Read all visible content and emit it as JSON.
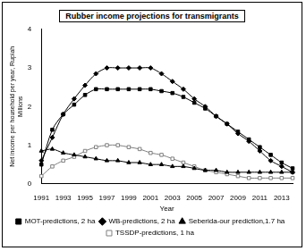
{
  "chart_data": {
    "type": "line",
    "title": "Rubber income projections for transmigrants",
    "x_label": "Year",
    "y_label": [
      "Net income per household per year, Rupiah",
      "Millions"
    ],
    "categories": [
      "1991",
      null,
      "1993",
      null,
      "1995",
      null,
      "1997",
      null,
      "1999",
      null,
      "2001",
      null,
      "2003",
      null,
      "2005",
      null,
      "2007",
      null,
      "2009",
      null,
      "2011",
      null,
      "2013",
      null
    ],
    "ylim": [
      0,
      4
    ],
    "yticks": [
      0,
      1,
      2,
      3,
      4
    ],
    "grid": false,
    "legend": "bottom",
    "series": [
      {
        "name": "MOT-predictions, 2 ha",
        "color": "#000000",
        "marker": "square",
        "line_style": "solid",
        "values": [
          0.5,
          1.4,
          1.8,
          2.05,
          2.3,
          2.45,
          2.45,
          2.45,
          2.45,
          2.45,
          2.45,
          2.4,
          2.35,
          2.25,
          2.1,
          1.95,
          1.75,
          1.55,
          1.35,
          1.15,
          0.95,
          0.75,
          0.55,
          0.4
        ]
      },
      {
        "name": "WB-predictions, 2 ha",
        "color": "#000000",
        "marker": "diamond",
        "line_style": "solid",
        "values": [
          0.6,
          1.2,
          1.8,
          2.2,
          2.55,
          2.85,
          3.0,
          3.0,
          3.0,
          3.0,
          3.0,
          2.85,
          2.65,
          2.45,
          2.2,
          2.0,
          1.75,
          1.55,
          1.3,
          1.1,
          0.85,
          0.6,
          0.45,
          0.3
        ]
      },
      {
        "name": "Seberida-our prediction,1.7 ha",
        "color": "#000000",
        "marker": "triangle",
        "line_style": "solid",
        "values": [
          0.85,
          0.9,
          0.8,
          0.75,
          0.7,
          0.65,
          0.6,
          0.6,
          0.55,
          0.55,
          0.5,
          0.5,
          0.45,
          0.45,
          0.4,
          0.35,
          0.35,
          0.3,
          0.3,
          0.3,
          0.3,
          0.3,
          0.3,
          0.3
        ]
      },
      {
        "name": "TSSDP-predictions, 1 ha",
        "color": "#808080",
        "marker": "square_open",
        "line_style": "solid",
        "values": [
          0.2,
          0.45,
          0.6,
          0.7,
          0.85,
          0.95,
          1.0,
          1.0,
          0.95,
          0.9,
          0.8,
          0.75,
          0.65,
          0.55,
          0.45,
          0.35,
          0.3,
          0.25,
          0.2,
          0.15,
          0.15,
          0.15,
          0.15,
          0.15
        ]
      }
    ]
  }
}
